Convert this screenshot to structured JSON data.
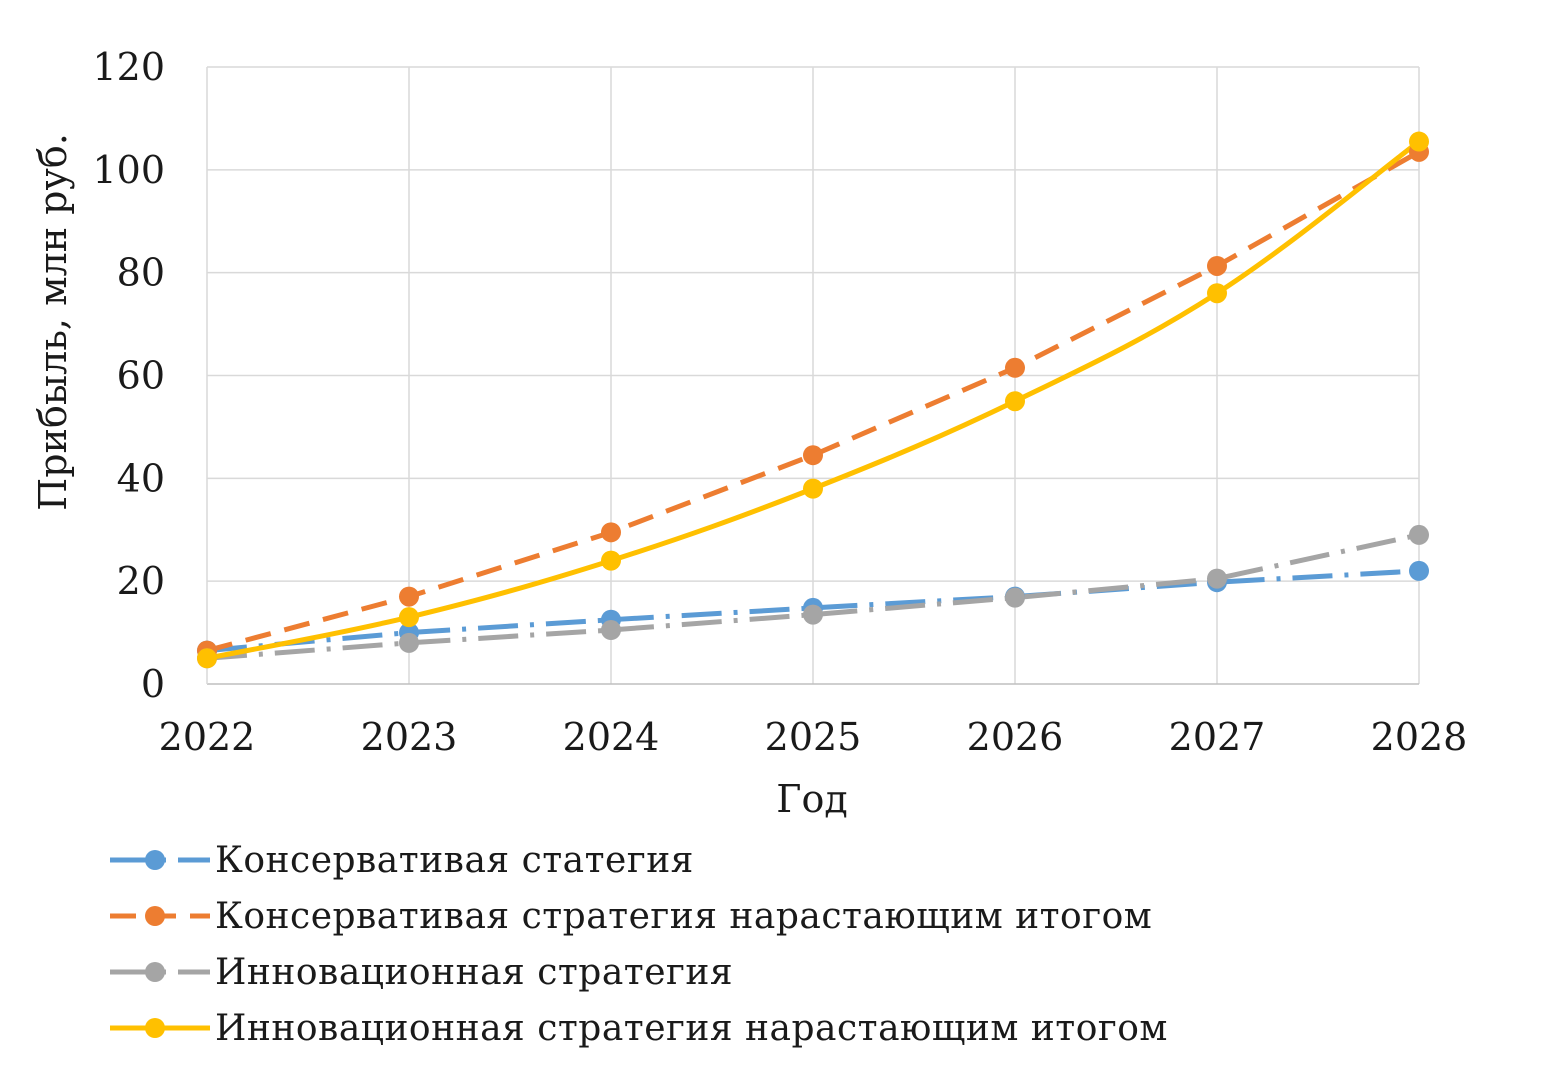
{
  "chart_data": {
    "type": "line",
    "title": "",
    "xlabel": "Год",
    "ylabel": "Прибыль, млн руб.",
    "x": [
      "2022",
      "2023",
      "2024",
      "2025",
      "2026",
      "2027",
      "2028"
    ],
    "ylim": [
      0,
      120
    ],
    "yticks": [
      "0",
      "20",
      "40",
      "60",
      "80",
      "100",
      "120"
    ],
    "grid": true,
    "legend_position": "bottom",
    "series": [
      {
        "name": "Консервативая статегия",
        "values": [
          6.5,
          10,
          12.5,
          14.8,
          17,
          19.8,
          22
        ],
        "color": "#5b9bd5",
        "dash": "long-dash-dot",
        "smooth": false
      },
      {
        "name": "Консервативая стратегия нарастающим итогом",
        "values": [
          6.5,
          17,
          29.5,
          44.5,
          61.5,
          81.3,
          103.5
        ],
        "color": "#ed7d31",
        "dash": "dash",
        "smooth": false
      },
      {
        "name": "Инновационная стратегия",
        "values": [
          5,
          8,
          10.5,
          13.5,
          16.8,
          20.5,
          29
        ],
        "color": "#a5a5a5",
        "dash": "long-dash-dot",
        "smooth": false
      },
      {
        "name": "Инновационная стратегия нарастающим итогом",
        "values": [
          5,
          13,
          24,
          38,
          55,
          76,
          105.5
        ],
        "color": "#ffc000",
        "dash": "solid",
        "smooth": true
      }
    ]
  }
}
